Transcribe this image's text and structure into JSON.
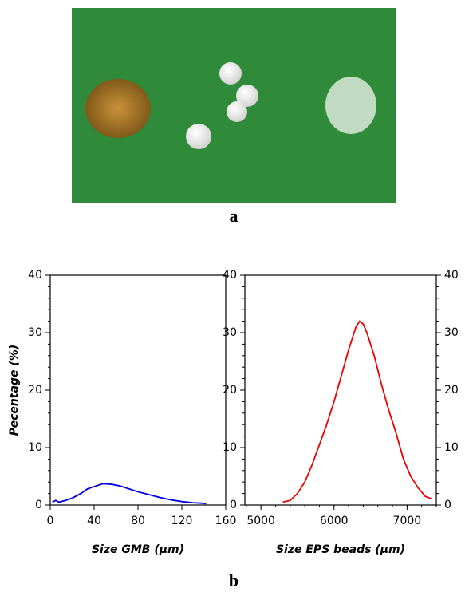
{
  "photo": {
    "label": "a"
  },
  "chart_label": "b",
  "chart_data": [
    {
      "type": "line",
      "ylabel": "Pecentage (%)",
      "xlabel": "Size GMB (μm)",
      "xlim": [
        0,
        160
      ],
      "xticks": [
        0,
        40,
        80,
        120,
        160
      ],
      "ylim": [
        0,
        40
      ],
      "yticks": [
        0,
        10,
        20,
        30,
        40
      ],
      "y_minor_step": 2,
      "y_labels_right": false,
      "series": [
        {
          "color": "#0000e0",
          "x": [
            2,
            5,
            8,
            14,
            20,
            28,
            34,
            40,
            48,
            56,
            64,
            72,
            80,
            90,
            100,
            110,
            120,
            130,
            140,
            142
          ],
          "values": [
            0.5,
            0.8,
            0.5,
            0.8,
            1.2,
            2.0,
            2.8,
            3.2,
            3.7,
            3.6,
            3.3,
            2.8,
            2.3,
            1.8,
            1.3,
            0.9,
            0.6,
            0.4,
            0.3,
            0.2
          ]
        }
      ]
    },
    {
      "type": "line",
      "xlabel": "Size EPS beads (μm)",
      "xlim": [
        4780,
        7400
      ],
      "xticks": [
        5000,
        6000,
        7000
      ],
      "ylim": [
        0,
        40
      ],
      "yticks": [
        0,
        10,
        20,
        30,
        40
      ],
      "x_minor_step": 200,
      "y_minor_step": 2,
      "y_labels_right": true,
      "series": [
        {
          "color": "#ee0000",
          "x": [
            5300,
            5400,
            5500,
            5600,
            5700,
            5800,
            5900,
            6000,
            6100,
            6200,
            6300,
            6350,
            6400,
            6450,
            6550,
            6650,
            6750,
            6850,
            6950,
            7050,
            7150,
            7250,
            7350
          ],
          "values": [
            0.5,
            0.8,
            2,
            4,
            7,
            10.5,
            14,
            18,
            22.5,
            27,
            31,
            32,
            31.5,
            30,
            26,
            21,
            16.5,
            12.5,
            8,
            5,
            3,
            1.5,
            1
          ]
        }
      ]
    }
  ]
}
